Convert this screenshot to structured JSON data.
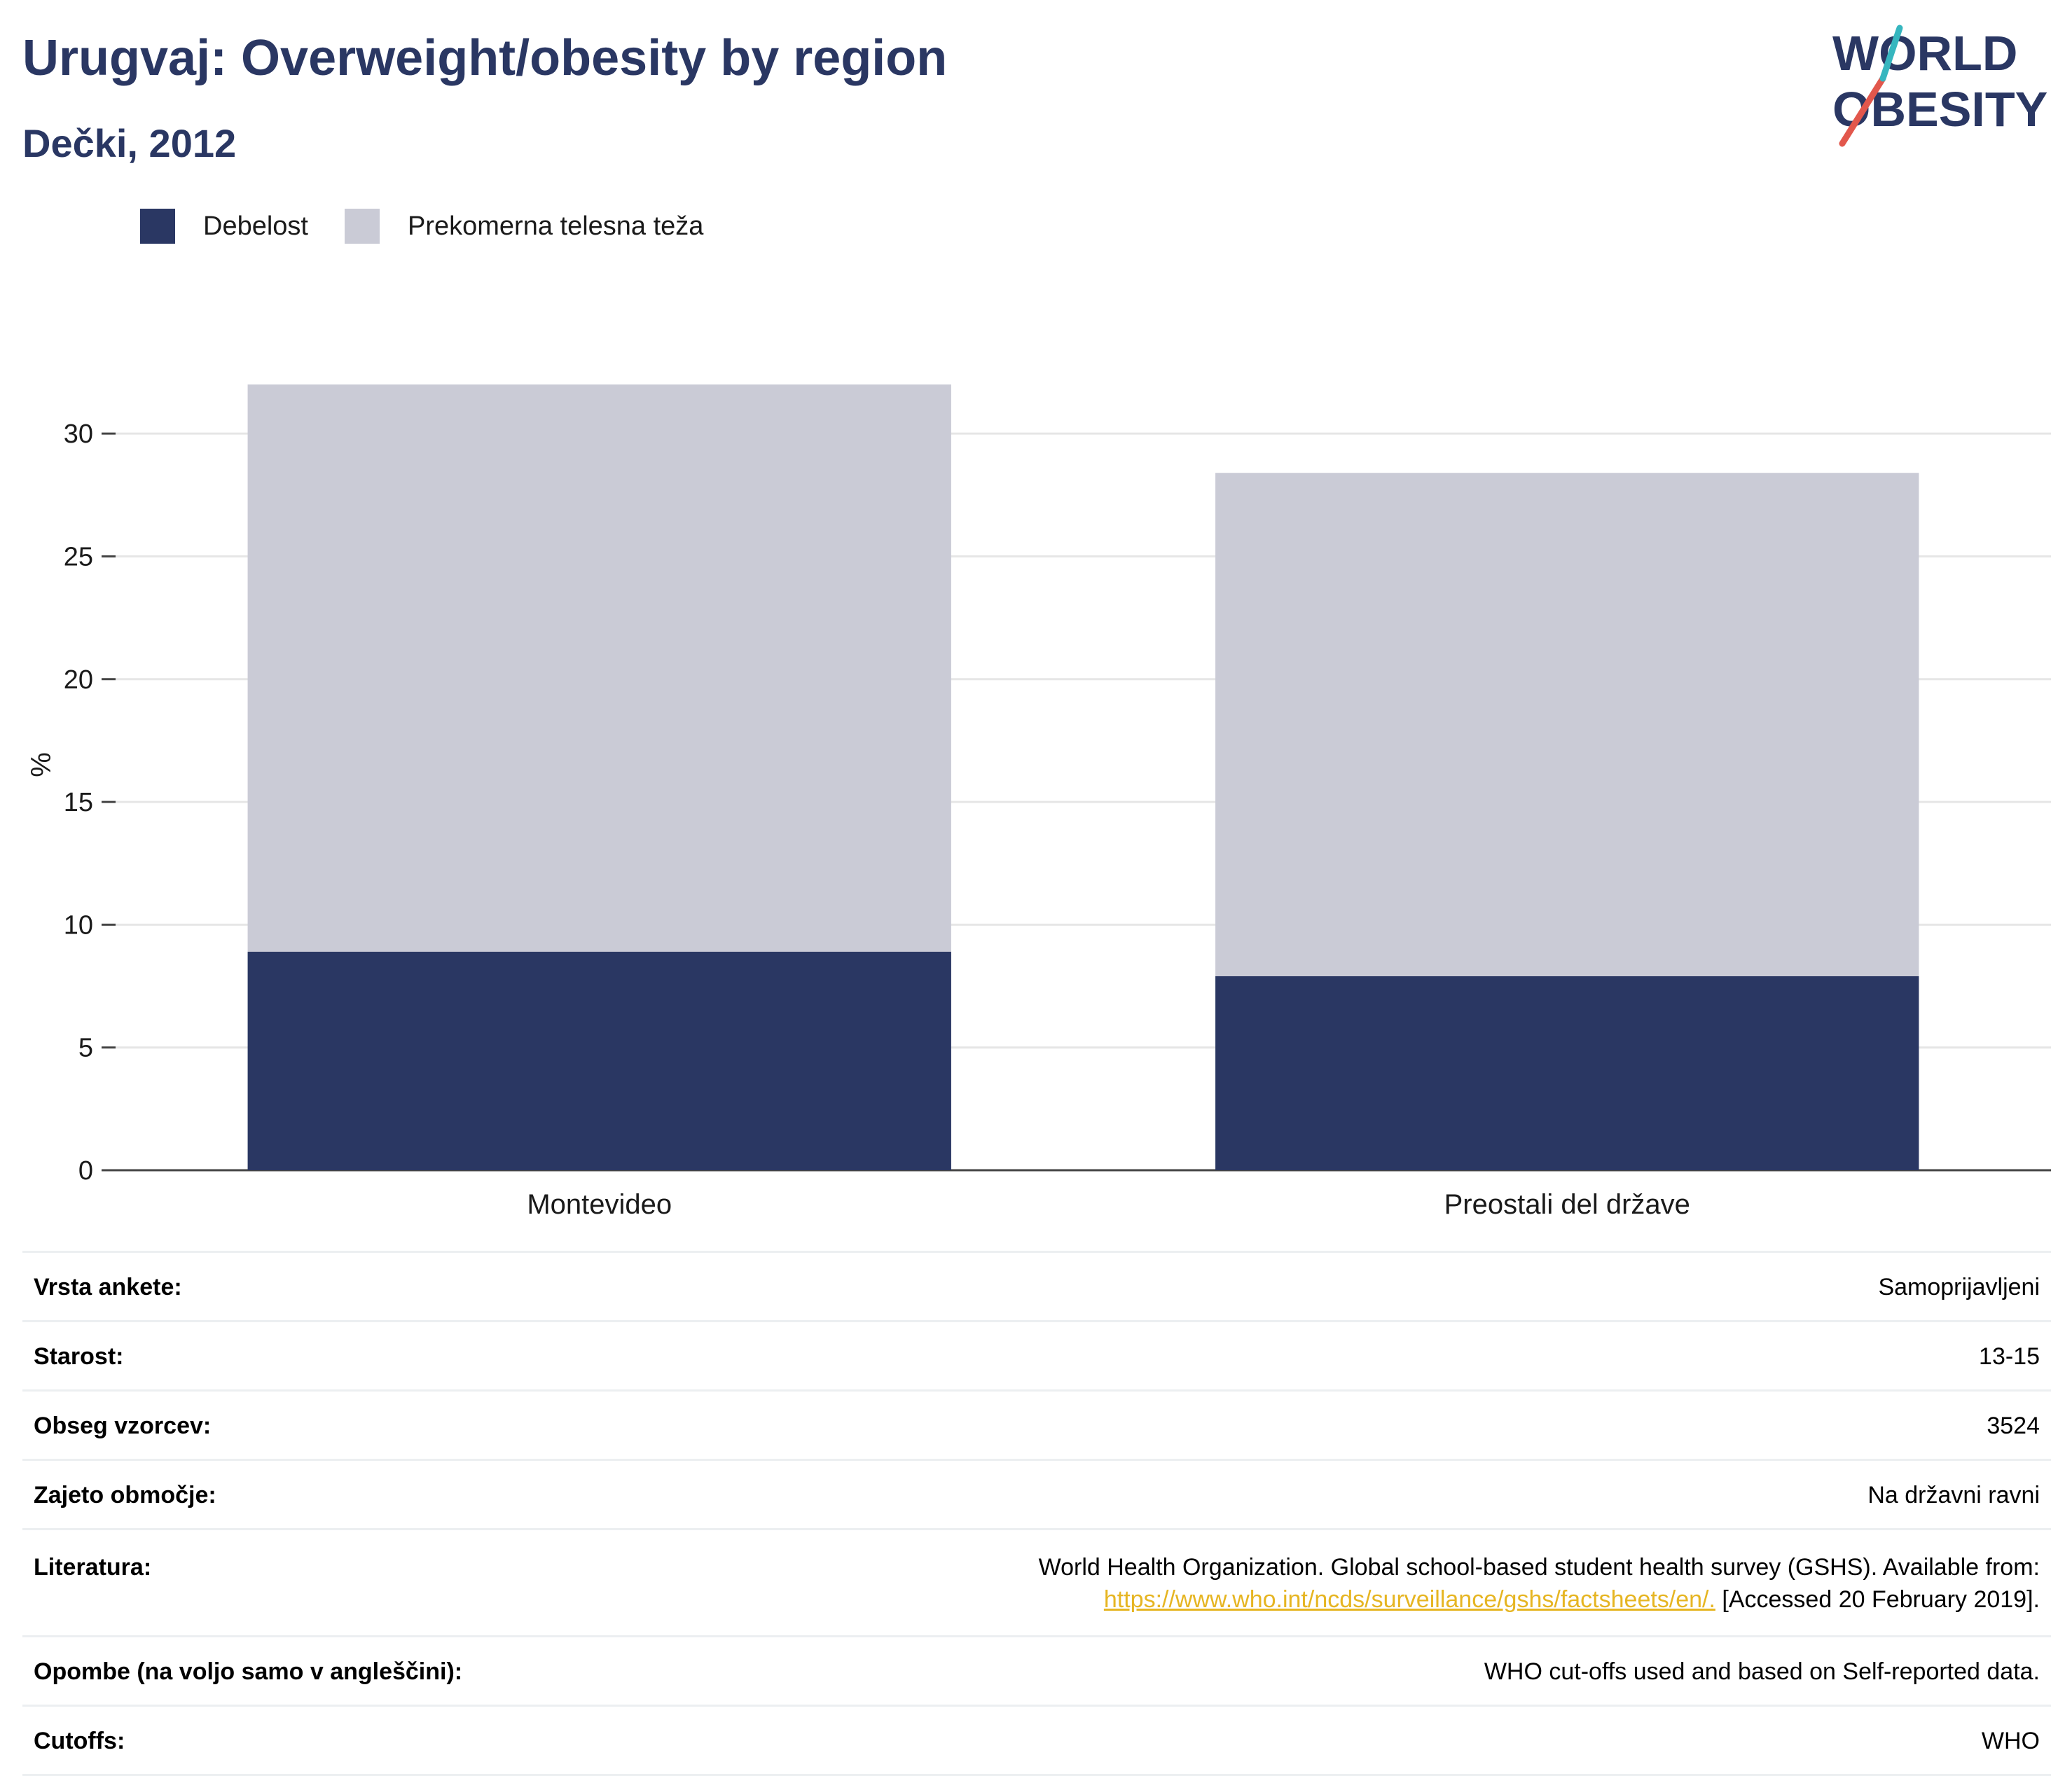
{
  "header": {
    "title": "Urugvaj: Overweight/obesity by region",
    "subtitle": "Dečki, 2012"
  },
  "logo": {
    "line1": "WORLD",
    "line2": "OBESITY",
    "colors": {
      "text": "#2a3763",
      "slash_red": "#e2574c",
      "slash_teal": "#36b6bf"
    }
  },
  "legend": [
    {
      "label": "Debelost",
      "color": "#2a3763"
    },
    {
      "label": "Prekomerna telesna teža",
      "color": "#cacbd6"
    }
  ],
  "chart_data": {
    "type": "bar",
    "stacked": true,
    "categories": [
      "Montevideo",
      "Preostali del države"
    ],
    "series": [
      {
        "name": "Debelost",
        "values": [
          8.9,
          7.9
        ],
        "color": "#2a3763"
      },
      {
        "name": "Prekomerna telesna teža",
        "values": [
          23.1,
          20.5
        ],
        "color": "#cacbd6"
      }
    ],
    "ylabel": "%",
    "ylim": [
      0,
      32
    ],
    "yticks": [
      0,
      5,
      10,
      15,
      20,
      25,
      30
    ],
    "grid": true
  },
  "info": [
    {
      "key": "Vrsta ankete:",
      "value": "Samoprijavljeni"
    },
    {
      "key": "Starost:",
      "value": "13-15"
    },
    {
      "key": "Obseg vzorcev:",
      "value": "3524"
    },
    {
      "key": "Zajeto območje:",
      "value": "Na državni ravni"
    },
    {
      "key": "Literatura:",
      "value_line1": "World Health Organization. Global school-based student health survey (GSHS). Available from:",
      "link": "https://www.who.int/ncds/surveillance/gshs/factsheets/en/.",
      "value_line2_tail": " [Accessed 20 February 2019]."
    },
    {
      "key": "Opombe (na voljo samo v angleščini):",
      "value": "WHO cut-offs used and based on Self-reported data."
    },
    {
      "key": "Cutoffs:",
      "value": "WHO"
    }
  ]
}
